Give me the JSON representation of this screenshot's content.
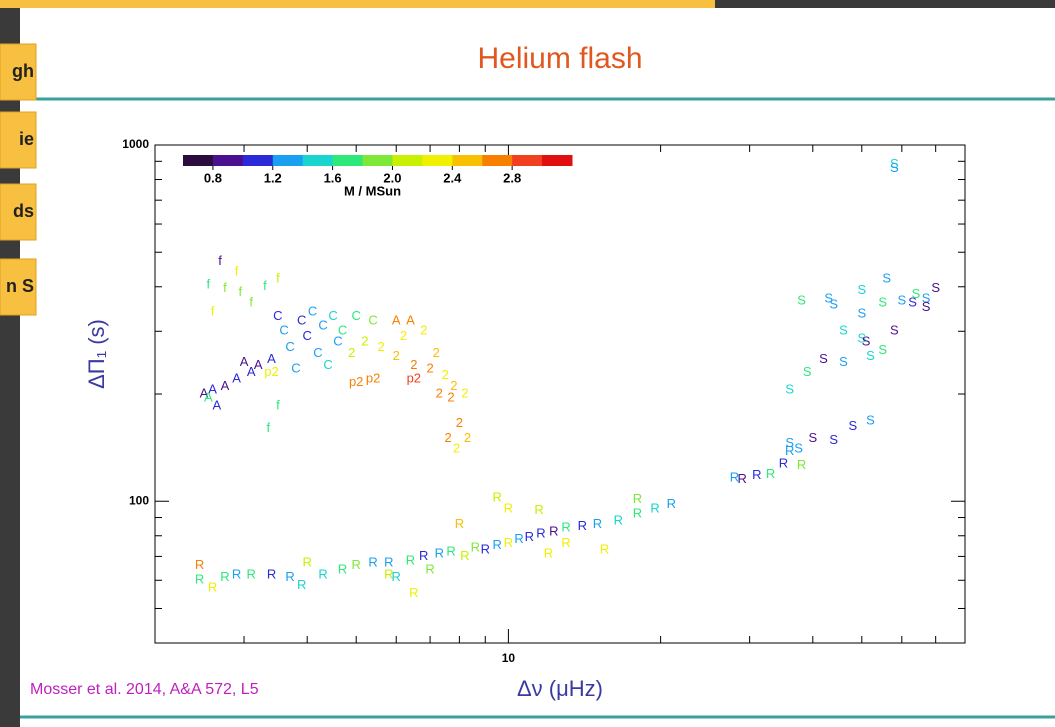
{
  "slide": {
    "title": "Helium flash",
    "citation": "Mosser et al. 2014, A&A 572, L5",
    "tabs": [
      "gh",
      "ie",
      "ds",
      "n S"
    ]
  },
  "chart_data": {
    "type": "scatter",
    "xlabel": "Δν  (μHz)",
    "ylabel": "ΔΠ₁  (s)",
    "xscale": "log",
    "yscale": "log",
    "xlim": [
      2,
      80
    ],
    "ylim": [
      40,
      1000
    ],
    "xticks": [
      10
    ],
    "yticks": [
      100,
      1000
    ],
    "xminor": [
      3,
      4,
      5,
      6,
      7,
      8,
      9,
      20,
      30,
      40,
      50,
      60,
      70
    ],
    "yminor": [
      50,
      60,
      70,
      80,
      90,
      200,
      300,
      400,
      500,
      600,
      700,
      800,
      900
    ],
    "colorbar": {
      "label": "M / MSun",
      "lim": [
        0.6,
        3.2
      ],
      "ticks": [
        0.8,
        1.2,
        1.6,
        {
          "value": 2,
          "label": "2.0"
        },
        2.4,
        2.8
      ],
      "colors": [
        "#2a0d3e",
        "#4b0f8f",
        "#2a2ad8",
        "#1aa0f0",
        "#1ad4d0",
        "#2ee87a",
        "#7ee83a",
        "#c8f000",
        "#f0f000",
        "#f8c000",
        "#f88000",
        "#f04020",
        "#e01010"
      ]
    },
    "series": [
      {
        "name": "A",
        "x": [
          2.5,
          2.6,
          2.75,
          2.9,
          3.1,
          3.2,
          2.55,
          2.65,
          3.0,
          3.4,
          6.0,
          6.4
        ],
        "y": [
          200,
          205,
          210,
          220,
          230,
          240,
          195,
          185,
          245,
          250,
          320,
          320
        ],
        "mass": [
          0.9,
          1.0,
          0.8,
          1.0,
          1.1,
          0.9,
          1.6,
          1.0,
          0.9,
          1.0,
          2.6,
          2.7
        ]
      },
      {
        "name": "C",
        "x": [
          3.6,
          3.9,
          4.1,
          4.3,
          3.7,
          4.0,
          4.5,
          4.7,
          4.2,
          3.8,
          4.4,
          5.0,
          5.4,
          3.5,
          4.6
        ],
        "y": [
          300,
          320,
          340,
          310,
          270,
          290,
          330,
          300,
          260,
          235,
          240,
          330,
          320,
          330,
          280
        ],
        "mass": [
          1.2,
          1.1,
          1.3,
          1.4,
          1.2,
          1.0,
          1.5,
          1.6,
          1.3,
          1.2,
          1.5,
          1.7,
          1.9,
          1.1,
          1.4
        ]
      },
      {
        "name": "f",
        "x": [
          2.69,
          2.55,
          2.75,
          2.95,
          3.3,
          3.5,
          3.1,
          2.6,
          3.5,
          3.35,
          2.9
        ],
        "y": [
          471,
          405,
          395,
          385,
          400,
          420,
          360,
          340,
          185,
          160,
          440
        ],
        "mass": [
          0.8,
          1.6,
          1.8,
          1.9,
          1.7,
          2.1,
          1.8,
          2.2,
          1.7,
          1.6,
          2.3
        ]
      },
      {
        "name": "2",
        "x": [
          5.6,
          6.0,
          6.5,
          7.0,
          7.5,
          7.8,
          8.2,
          7.3,
          7.7,
          8.0,
          7.6,
          8.3,
          7.9,
          6.2,
          6.8,
          5.2,
          4.9,
          7.2
        ],
        "y": [
          270,
          255,
          240,
          235,
          225,
          210,
          200,
          200,
          195,
          165,
          150,
          150,
          140,
          290,
          300,
          280,
          260,
          260
        ],
        "mass": [
          2.3,
          2.5,
          2.7,
          2.6,
          2.4,
          2.5,
          2.2,
          2.6,
          2.8,
          2.7,
          2.6,
          2.5,
          2.4,
          2.3,
          2.2,
          2.0,
          2.1,
          2.5
        ]
      },
      {
        "name": "p2",
        "x": [
          3.4,
          5.0,
          5.4,
          6.5
        ],
        "y": [
          230,
          215,
          220,
          220
        ],
        "mass": [
          2.3,
          2.6,
          2.8,
          2.9
        ]
      },
      {
        "name": "R",
        "x": [
          2.45,
          2.45,
          2.6,
          2.75,
          2.9,
          3.1,
          3.4,
          3.7,
          3.9,
          4.3,
          4.7,
          5.0,
          5.4,
          5.8,
          6.0,
          6.4,
          6.8,
          7.3,
          7.7,
          8.2,
          8.6,
          9.0,
          9.5,
          10.0,
          10.5,
          11.0,
          11.6,
          12.3,
          13.0,
          14.0,
          15.0,
          16.5,
          18.0,
          19.5,
          21.0,
          28,
          29,
          31,
          33,
          35,
          36,
          38,
          9.5,
          10.0,
          11.5,
          8.0,
          13.0,
          12.0,
          6.5,
          18.0,
          5.8,
          7.0,
          4.0,
          15.5
        ],
        "y": [
          66,
          60,
          57,
          61,
          62,
          62,
          62,
          61,
          58,
          62,
          64,
          66,
          67,
          67,
          61,
          68,
          70,
          71,
          72,
          70,
          74,
          73,
          75,
          76,
          78,
          79,
          81,
          82,
          84,
          85,
          86,
          88,
          92,
          95,
          98,
          116,
          115,
          118,
          119,
          127,
          138,
          126,
          102,
          95,
          94,
          86,
          76,
          71,
          55,
          101,
          62,
          64,
          67,
          73
        ],
        "mass": [
          2.7,
          1.7,
          2.4,
          1.6,
          1.2,
          1.6,
          1.0,
          1.3,
          1.5,
          1.5,
          1.6,
          1.8,
          1.4,
          1.2,
          1.5,
          1.7,
          1.1,
          1.3,
          1.6,
          2.0,
          1.9,
          1.0,
          1.4,
          2.2,
          1.3,
          1.1,
          1.0,
          0.9,
          1.6,
          1.1,
          1.4,
          1.5,
          1.6,
          1.5,
          1.4,
          1.3,
          0.9,
          1.1,
          1.6,
          1.1,
          1.4,
          1.8,
          2.1,
          2.2,
          2.0,
          2.5,
          2.3,
          2.2,
          2.3,
          1.9,
          2.0,
          1.9,
          2.0,
          2.2
        ]
      },
      {
        "name": "S",
        "x": [
          37.5,
          36,
          40,
          44,
          48,
          52,
          36,
          39,
          42,
          46,
          52,
          55,
          50,
          51,
          58,
          46,
          50,
          44,
          43,
          55,
          60,
          63,
          67,
          70,
          64,
          38,
          50,
          56,
          67,
          58,
          58
        ],
        "y": [
          140,
          145,
          150,
          148,
          162,
          168,
          205,
          230,
          250,
          245,
          255,
          265,
          285,
          280,
          300,
          300,
          335,
          355,
          370,
          360,
          365,
          360,
          370,
          395,
          380,
          365,
          390,
          420,
          350,
          880,
          860
        ],
        "mass": [
          1.4,
          1.2,
          0.9,
          1.0,
          1.1,
          1.2,
          1.5,
          1.6,
          0.9,
          1.3,
          1.5,
          1.6,
          1.5,
          0.9,
          0.9,
          1.5,
          1.4,
          1.3,
          1.2,
          1.6,
          1.3,
          1.0,
          1.2,
          0.9,
          1.6,
          1.6,
          1.5,
          1.4,
          0.8,
          1.5,
          1.4
        ]
      }
    ]
  }
}
